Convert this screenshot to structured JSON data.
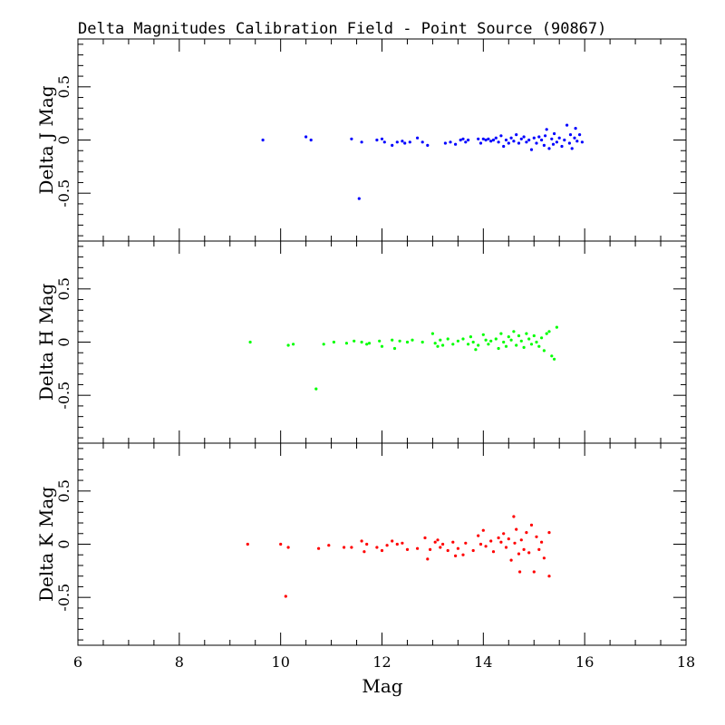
{
  "chart_data": {
    "type": "scatter",
    "title": "Delta Magnitudes Calibration Field - Point Source (90867)",
    "xlabel": "Mag",
    "xlim": [
      6,
      18
    ],
    "x_ticks": [
      "6",
      "8",
      "10",
      "12",
      "14",
      "16",
      "18"
    ],
    "ylim": [
      -0.95,
      0.95
    ],
    "y_ticks": [
      "-0.5",
      "0",
      "0.5"
    ],
    "grid": false,
    "panels": [
      {
        "name": "J",
        "ylabel": "Delta J Mag",
        "color": "#0000ff",
        "points": [
          [
            9.65,
            0.0
          ],
          [
            10.5,
            0.03
          ],
          [
            10.6,
            0.0
          ],
          [
            11.4,
            0.01
          ],
          [
            11.6,
            -0.02
          ],
          [
            11.55,
            -0.55
          ],
          [
            11.9,
            0.0
          ],
          [
            12.0,
            0.01
          ],
          [
            12.05,
            -0.02
          ],
          [
            12.2,
            -0.05
          ],
          [
            12.3,
            -0.02
          ],
          [
            12.4,
            -0.01
          ],
          [
            12.45,
            -0.03
          ],
          [
            12.55,
            -0.02
          ],
          [
            12.7,
            0.02
          ],
          [
            12.8,
            -0.02
          ],
          [
            12.9,
            -0.05
          ],
          [
            13.25,
            -0.03
          ],
          [
            13.35,
            -0.02
          ],
          [
            13.45,
            -0.04
          ],
          [
            13.55,
            0.0
          ],
          [
            13.6,
            0.01
          ],
          [
            13.65,
            -0.02
          ],
          [
            13.7,
            0.0
          ],
          [
            13.9,
            0.01
          ],
          [
            13.95,
            -0.03
          ],
          [
            14.0,
            0.01
          ],
          [
            14.05,
            0.0
          ],
          [
            14.1,
            0.01
          ],
          [
            14.15,
            -0.01
          ],
          [
            14.2,
            0.0
          ],
          [
            14.25,
            0.02
          ],
          [
            14.3,
            -0.02
          ],
          [
            14.35,
            0.04
          ],
          [
            14.4,
            -0.06
          ],
          [
            14.45,
            0.0
          ],
          [
            14.5,
            -0.03
          ],
          [
            14.55,
            0.02
          ],
          [
            14.6,
            -0.01
          ],
          [
            14.65,
            0.05
          ],
          [
            14.7,
            -0.03
          ],
          [
            14.75,
            0.01
          ],
          [
            14.8,
            0.03
          ],
          [
            14.85,
            -0.02
          ],
          [
            14.9,
            0.0
          ],
          [
            14.95,
            -0.09
          ],
          [
            15.0,
            0.02
          ],
          [
            15.05,
            -0.03
          ],
          [
            15.1,
            0.03
          ],
          [
            15.15,
            0.0
          ],
          [
            15.2,
            -0.05
          ],
          [
            15.22,
            0.04
          ],
          [
            15.25,
            0.1
          ],
          [
            15.3,
            -0.08
          ],
          [
            15.35,
            0.01
          ],
          [
            15.38,
            -0.04
          ],
          [
            15.4,
            0.06
          ],
          [
            15.45,
            -0.02
          ],
          [
            15.5,
            0.02
          ],
          [
            15.55,
            -0.06
          ],
          [
            15.6,
            0.0
          ],
          [
            15.65,
            0.14
          ],
          [
            15.7,
            -0.03
          ],
          [
            15.72,
            0.05
          ],
          [
            15.75,
            -0.08
          ],
          [
            15.8,
            0.02
          ],
          [
            15.82,
            0.11
          ],
          [
            15.85,
            -0.01
          ],
          [
            15.9,
            0.05
          ],
          [
            15.95,
            -0.02
          ]
        ]
      },
      {
        "name": "H",
        "ylabel": "Delta H Mag",
        "color": "#00ff00",
        "points": [
          [
            9.4,
            0.0
          ],
          [
            10.15,
            -0.03
          ],
          [
            10.25,
            -0.02
          ],
          [
            10.7,
            -0.44
          ],
          [
            10.85,
            -0.02
          ],
          [
            11.05,
            0.0
          ],
          [
            11.3,
            -0.01
          ],
          [
            11.45,
            0.01
          ],
          [
            11.6,
            0.0
          ],
          [
            11.7,
            -0.02
          ],
          [
            11.75,
            -0.01
          ],
          [
            11.95,
            0.01
          ],
          [
            12.0,
            -0.04
          ],
          [
            12.2,
            0.02
          ],
          [
            12.25,
            -0.06
          ],
          [
            12.35,
            0.01
          ],
          [
            12.5,
            0.0
          ],
          [
            12.6,
            0.02
          ],
          [
            12.8,
            0.0
          ],
          [
            13.0,
            0.08
          ],
          [
            13.05,
            -0.01
          ],
          [
            13.1,
            -0.04
          ],
          [
            13.15,
            0.02
          ],
          [
            13.2,
            -0.03
          ],
          [
            13.3,
            0.03
          ],
          [
            13.4,
            -0.02
          ],
          [
            13.5,
            0.01
          ],
          [
            13.6,
            0.03
          ],
          [
            13.7,
            -0.02
          ],
          [
            13.75,
            0.05
          ],
          [
            13.8,
            0.0
          ],
          [
            13.85,
            -0.07
          ],
          [
            13.9,
            -0.03
          ],
          [
            14.0,
            0.07
          ],
          [
            14.05,
            0.02
          ],
          [
            14.1,
            -0.02
          ],
          [
            14.15,
            0.01
          ],
          [
            14.25,
            0.03
          ],
          [
            14.3,
            -0.06
          ],
          [
            14.35,
            0.08
          ],
          [
            14.4,
            0.0
          ],
          [
            14.45,
            -0.04
          ],
          [
            14.5,
            0.05
          ],
          [
            14.55,
            0.02
          ],
          [
            14.6,
            0.1
          ],
          [
            14.65,
            -0.03
          ],
          [
            14.7,
            0.06
          ],
          [
            14.75,
            0.01
          ],
          [
            14.8,
            -0.05
          ],
          [
            14.85,
            0.08
          ],
          [
            14.9,
            0.03
          ],
          [
            14.95,
            -0.02
          ],
          [
            15.0,
            0.06
          ],
          [
            15.05,
            0.0
          ],
          [
            15.1,
            -0.04
          ],
          [
            15.15,
            0.04
          ],
          [
            15.2,
            -0.08
          ],
          [
            15.25,
            0.08
          ],
          [
            15.3,
            0.1
          ],
          [
            15.35,
            -0.13
          ],
          [
            15.4,
            -0.16
          ],
          [
            15.45,
            0.14
          ]
        ]
      },
      {
        "name": "K",
        "ylabel": "Delta K Mag",
        "color": "#ff0000",
        "points": [
          [
            9.35,
            0.0
          ],
          [
            10.0,
            0.0
          ],
          [
            10.1,
            -0.49
          ],
          [
            10.15,
            -0.03
          ],
          [
            10.75,
            -0.04
          ],
          [
            10.95,
            -0.01
          ],
          [
            11.25,
            -0.03
          ],
          [
            11.4,
            -0.03
          ],
          [
            11.6,
            0.03
          ],
          [
            11.65,
            -0.07
          ],
          [
            11.7,
            0.0
          ],
          [
            11.9,
            -0.03
          ],
          [
            12.0,
            -0.06
          ],
          [
            12.1,
            -0.01
          ],
          [
            12.2,
            0.03
          ],
          [
            12.3,
            0.0
          ],
          [
            12.4,
            0.01
          ],
          [
            12.5,
            -0.05
          ],
          [
            12.7,
            -0.04
          ],
          [
            12.85,
            0.06
          ],
          [
            12.9,
            -0.14
          ],
          [
            12.95,
            -0.05
          ],
          [
            13.05,
            0.02
          ],
          [
            13.1,
            0.04
          ],
          [
            13.15,
            -0.03
          ],
          [
            13.2,
            0.0
          ],
          [
            13.3,
            -0.06
          ],
          [
            13.4,
            0.02
          ],
          [
            13.45,
            -0.11
          ],
          [
            13.5,
            -0.04
          ],
          [
            13.6,
            -0.1
          ],
          [
            13.65,
            0.01
          ],
          [
            13.8,
            -0.06
          ],
          [
            13.9,
            0.08
          ],
          [
            13.95,
            0.0
          ],
          [
            14.0,
            0.13
          ],
          [
            14.05,
            -0.02
          ],
          [
            14.15,
            0.03
          ],
          [
            14.2,
            -0.07
          ],
          [
            14.3,
            0.06
          ],
          [
            14.35,
            0.02
          ],
          [
            14.4,
            0.1
          ],
          [
            14.45,
            -0.03
          ],
          [
            14.5,
            0.05
          ],
          [
            14.55,
            -0.15
          ],
          [
            14.6,
            0.26
          ],
          [
            14.62,
            0.01
          ],
          [
            14.65,
            0.14
          ],
          [
            14.7,
            -0.09
          ],
          [
            14.72,
            -0.26
          ],
          [
            14.75,
            0.04
          ],
          [
            14.8,
            -0.05
          ],
          [
            14.85,
            0.11
          ],
          [
            14.9,
            -0.08
          ],
          [
            14.95,
            0.18
          ],
          [
            15.0,
            -0.26
          ],
          [
            15.05,
            0.07
          ],
          [
            15.1,
            -0.05
          ],
          [
            15.15,
            0.02
          ],
          [
            15.2,
            -0.13
          ],
          [
            15.3,
            -0.3
          ],
          [
            15.3,
            0.11
          ]
        ]
      }
    ]
  }
}
